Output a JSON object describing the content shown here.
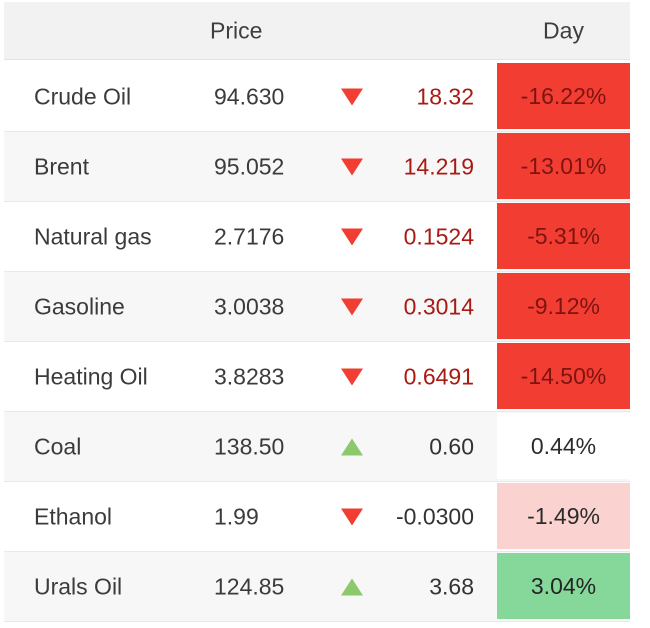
{
  "header": {
    "price_label": "Price",
    "day_label": "Day"
  },
  "table": {
    "rows": [
      {
        "name": "Crude Oil",
        "price": "94.630",
        "direction": "down",
        "change": "18.32",
        "change_tone": "red",
        "day": "-16.22%",
        "day_tone": "red"
      },
      {
        "name": "Brent",
        "price": "95.052",
        "direction": "down",
        "change": "14.219",
        "change_tone": "red",
        "day": "-13.01%",
        "day_tone": "red"
      },
      {
        "name": "Natural gas",
        "price": "2.7176",
        "direction": "down",
        "change": "0.1524",
        "change_tone": "red",
        "day": "-5.31%",
        "day_tone": "red"
      },
      {
        "name": "Gasoline",
        "price": "3.0038",
        "direction": "down",
        "change": "0.3014",
        "change_tone": "red",
        "day": "-9.12%",
        "day_tone": "red"
      },
      {
        "name": "Heating Oil",
        "price": "3.8283",
        "direction": "down",
        "change": "0.6491",
        "change_tone": "red",
        "day": "-14.50%",
        "day_tone": "red"
      },
      {
        "name": "Coal",
        "price": "138.50",
        "direction": "up",
        "change": "0.60",
        "change_tone": "dark",
        "day": "0.44%",
        "day_tone": "white"
      },
      {
        "name": "Ethanol",
        "price": "1.99",
        "direction": "down",
        "change": "-0.0300",
        "change_tone": "dark",
        "day": "-1.49%",
        "day_tone": "pink"
      },
      {
        "name": "Urals Oil",
        "price": "124.85",
        "direction": "up",
        "change": "3.68",
        "change_tone": "dark",
        "day": "3.04%",
        "day_tone": "green"
      }
    ]
  },
  "colors": {
    "negative_strong_bg": "#f23d33",
    "negative_strong_text": "#7d1410",
    "negative_light_bg": "#fad3d1",
    "positive_bg": "#86d79a",
    "down_triangle": "#f23d33",
    "up_triangle": "#8cc96d",
    "change_negative_text": "#a81a12",
    "header_bg": "#f2f2f2",
    "alt_row_bg": "#f7f7f7",
    "text": "#3b3b3b"
  }
}
